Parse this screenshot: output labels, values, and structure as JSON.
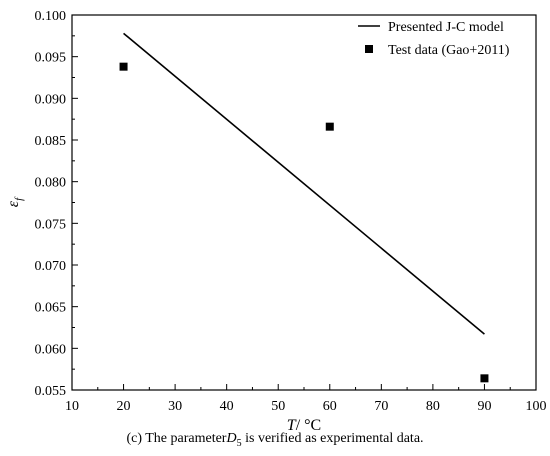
{
  "chart_data": {
    "type": "line+scatter",
    "title": "",
    "xlabel": {
      "main": "T",
      "unit": "/ °C"
    },
    "ylabel": {
      "main": "ε",
      "sub": "f"
    },
    "xlim": [
      10,
      100
    ],
    "ylim": [
      0.055,
      0.1
    ],
    "xticks": [
      "10",
      "20",
      "30",
      "40",
      "50",
      "60",
      "70",
      "80",
      "90",
      "100"
    ],
    "yticks": [
      "0.055",
      "0.060",
      "0.065",
      "0.070",
      "0.075",
      "0.080",
      "0.085",
      "0.090",
      "0.095",
      "0.100"
    ],
    "grid": false,
    "legend_position": "top-right",
    "series": [
      {
        "name": "Presented J-C model",
        "type": "line",
        "color": "#000000",
        "x": [
          20,
          90
        ],
        "y": [
          0.0978,
          0.0617
        ]
      },
      {
        "name": "Test data (Gao+2011)",
        "type": "scatter",
        "marker": "square",
        "color": "#000000",
        "x": [
          20,
          60,
          90
        ],
        "y": [
          0.0938,
          0.0866,
          0.0564
        ]
      }
    ]
  },
  "caption": {
    "label": "(c)",
    "text_before": " The parameter",
    "symbol": "D",
    "subscript": "5",
    "text_after": " is verified as experimental data."
  }
}
